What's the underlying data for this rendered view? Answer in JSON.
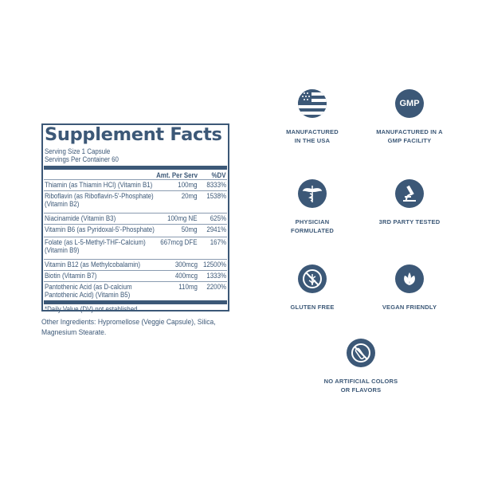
{
  "panel": {
    "title": "Supplement Facts",
    "serving_size": "Serving Size 1 Capsule",
    "servings_per_container": "Servings Per Container 60",
    "header": {
      "amount": "Amt. Per Serv",
      "dv": "%DV"
    },
    "rows": [
      {
        "name": "Thiamin (as Thiamin HCl) (Vitamin B1)",
        "amount": "100mg",
        "dv": "8333%"
      },
      {
        "name": "Riboflavin (as Riboflavin-5'-Phosphate)",
        "name2": "(Vitamin B2)",
        "amount": "20mg",
        "dv": "1538%"
      },
      {
        "name": "Niacinamide (Vitamin B3)",
        "amount": "100mg NE",
        "dv": "625%"
      },
      {
        "name": "Vitamin B6 (as Pyridoxal-5'-Phosphate)",
        "amount": "50mg",
        "dv": "2941%"
      },
      {
        "name": "Folate (as L-5-Methyl-THF-Calcium)",
        "name2": "(Vitamin B9)",
        "amount": "667mcg DFE",
        "dv": "167%"
      },
      {
        "name": "Vitamin B12 (as Methylcobalamin)",
        "amount": "300mcg",
        "dv": "12500%"
      },
      {
        "name": "Biotin (Vitamin B7)",
        "amount": "400mcg",
        "dv": "1333%"
      },
      {
        "name": "Pantothenic Acid (as D-calcium",
        "name2": "Pantothenic Acid) (Vitamin B5)",
        "amount": "110mg",
        "dv": "2200%"
      }
    ],
    "footnote": "*Daily Value (DV) not established."
  },
  "other_ingredients": {
    "line1": "Other Ingredients: Hypromellose (Veggie Capsule), Silica,",
    "line2": "Magnesium Stearate."
  },
  "badges": [
    {
      "icon": "usa-flag-icon",
      "l1": "MANUFACTURED",
      "l2": "IN THE USA"
    },
    {
      "icon": "gmp-icon",
      "text": "GMP",
      "l1": "MANUFACTURED IN A",
      "l2": "GMP FACILITY"
    },
    {
      "icon": "caduceus-icon",
      "l1": "PHYSICIAN",
      "l2": "FORMULATED"
    },
    {
      "icon": "microscope-icon",
      "l1": "3RD PARTY TESTED",
      "l2": ""
    },
    {
      "icon": "no-gluten-icon",
      "l1": "GLUTEN FREE",
      "l2": ""
    },
    {
      "icon": "leaf-icon",
      "l1": "VEGAN FRIENDLY",
      "l2": ""
    },
    {
      "icon": "no-artificial-colors-icon",
      "l1": "NO ARTIFICIAL COLORS",
      "l2": "OR FLAVORS"
    }
  ],
  "colors": {
    "brand": "#3c5877"
  }
}
